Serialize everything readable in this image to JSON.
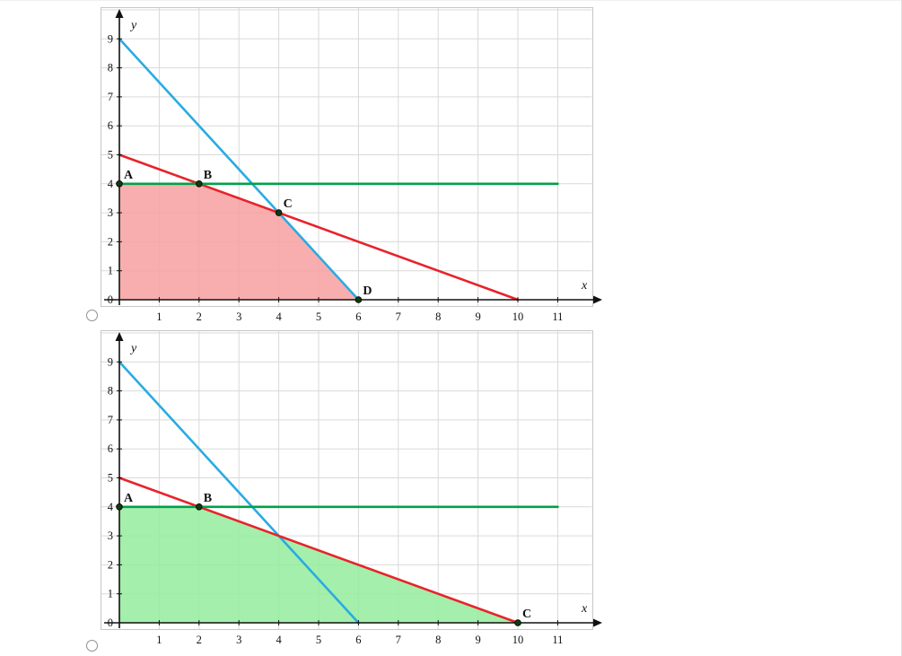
{
  "page": {
    "background": "#ffffff",
    "frame_color": "#c6c6c6",
    "grid_color": "#d9d9d9",
    "axis_color": "#111111",
    "point_color": "#0d3b0d"
  },
  "options": [
    {
      "name": "answer-option-1",
      "radio_selected": false
    },
    {
      "name": "answer-option-2",
      "radio_selected": false
    }
  ],
  "chart_data": [
    {
      "type": "line",
      "title": "",
      "xlabel": "x",
      "ylabel": "y",
      "xlim": [
        0,
        11.9
      ],
      "ylim": [
        0,
        9.9
      ],
      "grid": true,
      "x_ticks": [
        "1",
        "2",
        "3",
        "4",
        "5",
        "6",
        "7",
        "8",
        "9",
        "10",
        "11"
      ],
      "y_ticks": [
        "1",
        "2",
        "3",
        "4",
        "5",
        "6",
        "7",
        "8",
        "9"
      ],
      "origin_tick": "0",
      "series": [
        {
          "name": "line-blue",
          "color": "#29ABE2",
          "points": [
            [
              0,
              9
            ],
            [
              6,
              0
            ]
          ]
        },
        {
          "name": "line-red",
          "color": "#E8232A",
          "points": [
            [
              0,
              5
            ],
            [
              10,
              0
            ]
          ]
        },
        {
          "name": "line-green",
          "color": "#00A14B",
          "points": [
            [
              0,
              4
            ],
            [
              11,
              4
            ]
          ]
        }
      ],
      "region": {
        "name": "feasible-region-pink",
        "fill": "#F7A0A0",
        "fill_opacity": 0.85,
        "vertices": [
          [
            0,
            0
          ],
          [
            0,
            4
          ],
          [
            2,
            4
          ],
          [
            4,
            3
          ],
          [
            6,
            0
          ]
        ]
      },
      "points": [
        {
          "label": "A",
          "x": 0,
          "y": 4
        },
        {
          "label": "B",
          "x": 2,
          "y": 4
        },
        {
          "label": "C",
          "x": 4,
          "y": 3
        },
        {
          "label": "D",
          "x": 6,
          "y": 0
        }
      ]
    },
    {
      "type": "line",
      "title": "",
      "xlabel": "x",
      "ylabel": "y",
      "xlim": [
        0,
        11.9
      ],
      "ylim": [
        0,
        9.9
      ],
      "grid": true,
      "x_ticks": [
        "1",
        "2",
        "3",
        "4",
        "5",
        "6",
        "7",
        "8",
        "9",
        "10",
        "11"
      ],
      "y_ticks": [
        "1",
        "2",
        "3",
        "4",
        "5",
        "6",
        "7",
        "8",
        "9"
      ],
      "origin_tick": "0",
      "series": [
        {
          "name": "line-blue",
          "color": "#29ABE2",
          "points": [
            [
              0,
              9
            ],
            [
              6,
              0
            ]
          ]
        },
        {
          "name": "line-red",
          "color": "#E8232A",
          "points": [
            [
              0,
              5
            ],
            [
              10,
              0
            ]
          ]
        },
        {
          "name": "line-green",
          "color": "#00A14B",
          "points": [
            [
              0,
              4
            ],
            [
              11,
              4
            ]
          ]
        }
      ],
      "region": {
        "name": "feasible-region-green",
        "fill": "#93EC9C",
        "fill_opacity": 0.85,
        "vertices": [
          [
            0,
            0
          ],
          [
            0,
            4
          ],
          [
            2,
            4
          ],
          [
            10,
            0
          ]
        ]
      },
      "points": [
        {
          "label": "A",
          "x": 0,
          "y": 4
        },
        {
          "label": "B",
          "x": 2,
          "y": 4
        },
        {
          "label": "C",
          "x": 10,
          "y": 0
        }
      ]
    }
  ]
}
